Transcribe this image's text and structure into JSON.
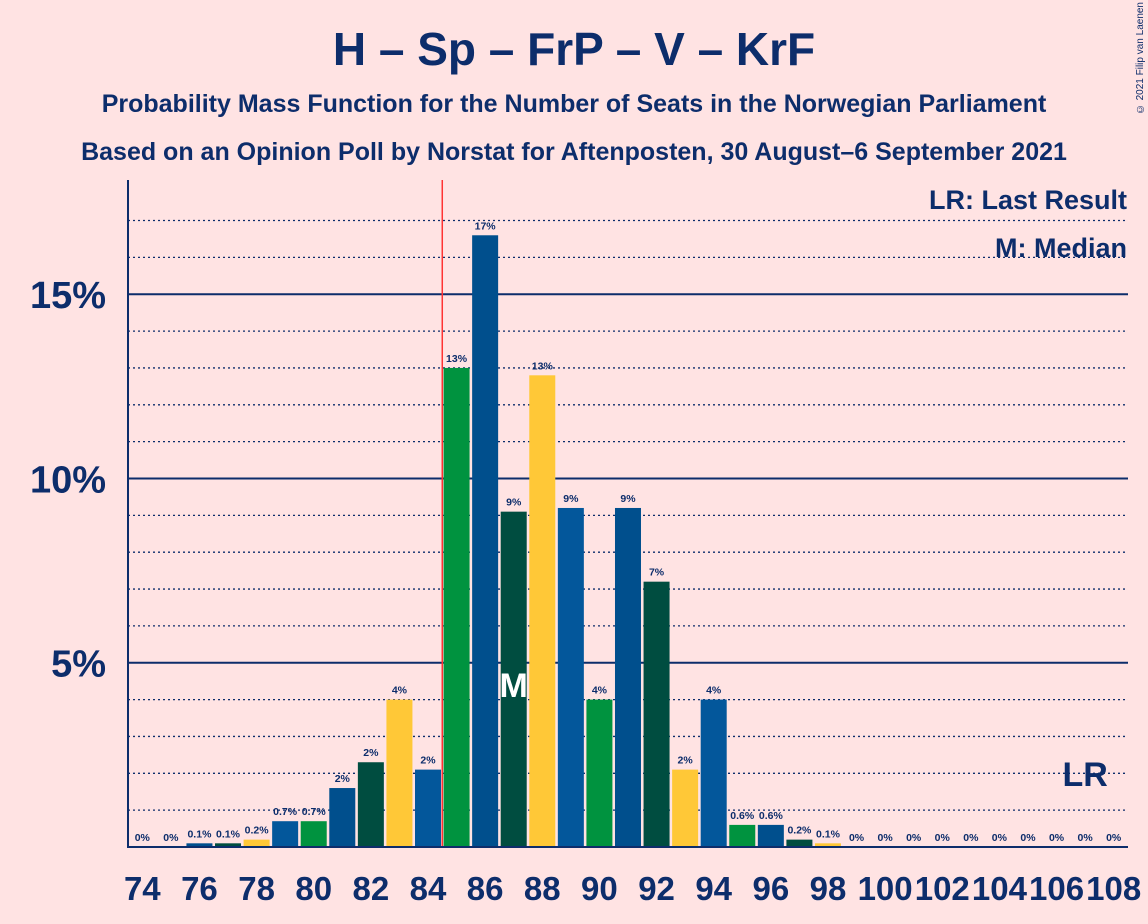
{
  "title": "H – Sp – FrP – V – KrF",
  "subtitle1": "Probability Mass Function for the Number of Seats in the Norwegian Parliament",
  "subtitle2": "Based on an Opinion Poll by Norstat for Aftenposten, 30 August–6 September 2021",
  "copyright": "© 2021 Filip van Laenen",
  "legend": {
    "lr": "LR: Last Result",
    "m": "M: Median"
  },
  "markers": {
    "median_label": "M",
    "last_result_label": "LR",
    "median_seat": 87,
    "last_result_seat": 107,
    "majority_seat": 85
  },
  "colors": {
    "background": "#ffe3e3",
    "axis": "#0d2d6b",
    "majority_line": "#ff3333",
    "cycle": [
      "#03579b",
      "#00933f",
      "#004f8d",
      "#004d40",
      "#ffc837"
    ]
  },
  "chart_data": {
    "type": "bar",
    "xlabel": "",
    "ylabel": "",
    "ylim": [
      0,
      17.5
    ],
    "yticks": [
      {
        "value": 5,
        "label": "5%"
      },
      {
        "value": 10,
        "label": "10%"
      },
      {
        "value": 15,
        "label": "15%"
      }
    ],
    "minor_grid_step": 1,
    "x_tick_step": 2,
    "categories": [
      74,
      75,
      76,
      77,
      78,
      79,
      80,
      81,
      82,
      83,
      84,
      85,
      86,
      87,
      88,
      89,
      90,
      91,
      92,
      93,
      94,
      95,
      96,
      97,
      98,
      99,
      100,
      101,
      102,
      103,
      104,
      105,
      106,
      107,
      108
    ],
    "values": [
      0,
      0,
      0.1,
      0.1,
      0.2,
      0.7,
      0.7,
      1.6,
      2.3,
      4.0,
      2.1,
      13.0,
      16.6,
      9.1,
      12.8,
      9.2,
      4.0,
      9.2,
      7.2,
      2.1,
      4.0,
      0.6,
      0.6,
      0.2,
      0.1,
      0,
      0,
      0,
      0,
      0,
      0,
      0,
      0,
      0,
      0
    ],
    "labels": [
      "0%",
      "0%",
      "0.1%",
      "0.1%",
      "0.2%",
      "0.7%",
      "0.7%",
      "2%",
      "2%",
      "4%",
      "2%",
      "13%",
      "17%",
      "9%",
      "13%",
      "9%",
      "4%",
      "9%",
      "7%",
      "2%",
      "4%",
      "0.6%",
      "0.6%",
      "0.2%",
      "0.1%",
      "0%",
      "0%",
      "0%",
      "0%",
      "0%",
      "0%",
      "0%",
      "0%",
      "0%",
      "0%"
    ]
  }
}
